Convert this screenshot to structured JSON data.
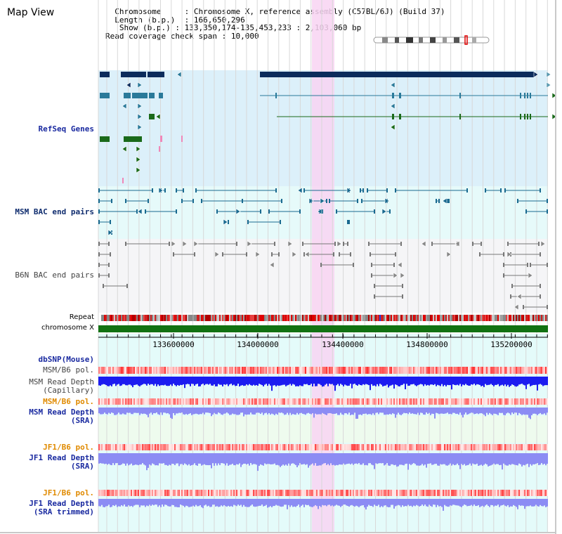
{
  "window": {
    "title": "Map View"
  },
  "info": {
    "chromosome_key": "Chromosome",
    "chromosome_val": "Chromosome X, reference assembly (C57BL/6J) (Build 37)",
    "length_key": "Length (b.p.)",
    "length_val": "166,650,296",
    "show_key": "Show (b.p.)",
    "show_val": "133,350,174-135,453,233 : 2,103,060 bp",
    "coverage_key": "Read coverage check span",
    "coverage_val": "10,000"
  },
  "tracks": {
    "refseq": "RefSeq Genes",
    "msm_bac": "MSM BAC end pairs",
    "b6n_bac": "B6N BAC end pairs",
    "repeat": "Repeat",
    "chromosome": "chromosome X",
    "dbsnp": "dbSNP(Mouse)",
    "msm_b6_pol_1": "MSM/B6 pol.",
    "msm_depth_cap_1": "MSM Read Depth",
    "msm_depth_cap_2": "(Capillary)",
    "msm_b6_pol_2": "MSM/B6 pol.",
    "msm_depth_sra_1": "MSM Read Depth",
    "msm_depth_sra_2": "(SRA)",
    "jf1_b6_pol_1": "JF1/B6 pol.",
    "jf1_depth_sra_1": "JF1 Read Depth",
    "jf1_depth_sra_2": "(SRA)",
    "jf1_b6_pol_2": "JF1/B6 pol.",
    "jf1_depth_trim_1": "JF1 Read Depth",
    "jf1_depth_trim_2": "(SRA trimmed)"
  },
  "axis": {
    "ticks": [
      "133600000",
      "134000000",
      "134400000",
      "134800000",
      "135200000"
    ]
  },
  "colors": {
    "refseq_bg": "#dcf0fa",
    "msm_bac_bg": "#e6fafa",
    "b6n_bac_bg": "#f5f5f7",
    "lower_bg": "#e4fbfa",
    "sra_bg": "#eefbee",
    "highlight": "#f8d4f2",
    "gene_dark": "#0c2c5c",
    "gene_teal": "#2a7a9a",
    "gene_green": "#1a6a1a",
    "msm_bac": "#1a6a90",
    "b6n_bac": "#777777",
    "chromosome_bar": "#127212",
    "cap_depth": "#1c1cf0",
    "sra_depth": "#8c8cf4"
  }
}
